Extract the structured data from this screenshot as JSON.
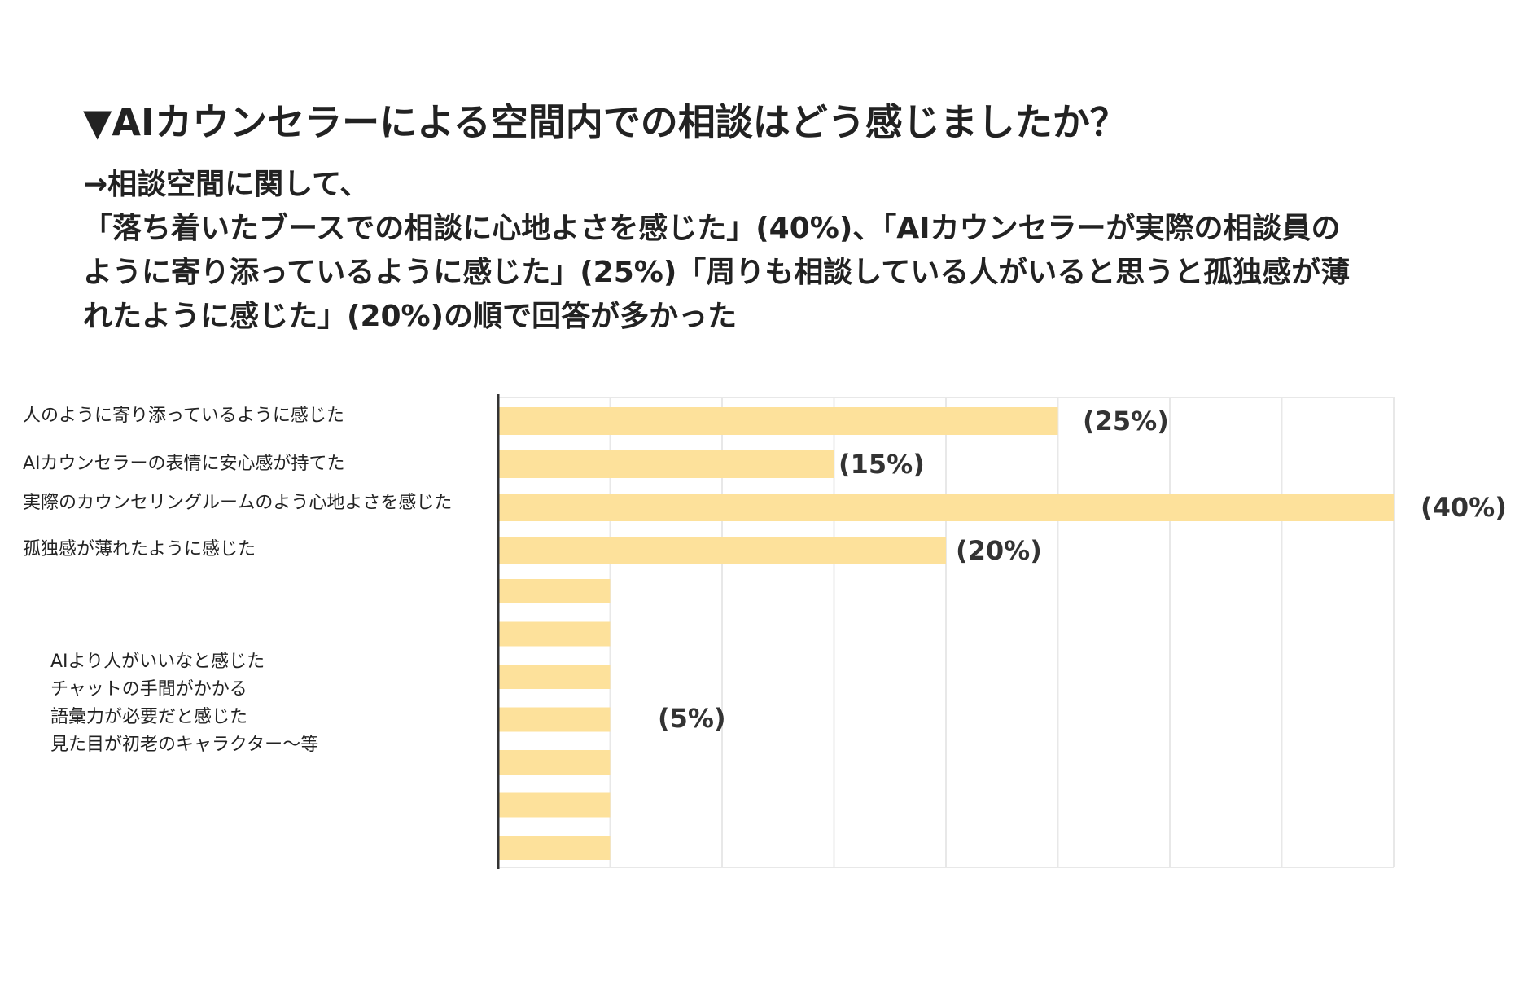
{
  "title": "▼AIカウンセラーによる空間内での相談はどう感じましたか？",
  "summary": [
    "→相談空間に関して、",
    "「落ち着いたブースでの相談に心地よさを感じた」(40%)、「AIカウンセラーが実際の相談員の",
    "ように寄り添っているように感じた」(25%)「周りも相談している人がいると思うと孤独感が薄",
    "れたように感じた」(20%)の順で回答が多かった"
  ],
  "chart_data": {
    "type": "bar",
    "orientation": "horizontal",
    "categories": [
      "人のように寄り添っているように感じた",
      "AIカウンセラーの表情に安心感が持てた",
      "実際のカウンセリングルームのよう心地よさを感じた",
      "孤独感が薄れたように感じた"
    ],
    "values": [
      25,
      15,
      40,
      20
    ],
    "value_labels": [
      "(25%)",
      "(15%)",
      "(40%)",
      "(20%)"
    ],
    "other_group": {
      "items": [
        "AIより人がいいなと感じた",
        "チャットの手間がかかる",
        "語彙力が必要だと感じた",
        "見た目が初老のキャラクター～等"
      ],
      "bar_count": 7,
      "value_each": 5,
      "value_label": "(5%)"
    },
    "xlim": [
      0,
      40
    ],
    "grid": true,
    "bar_color": "#FDE19B",
    "grid_color": "#E8E8E8",
    "axis_color": "#333333"
  }
}
